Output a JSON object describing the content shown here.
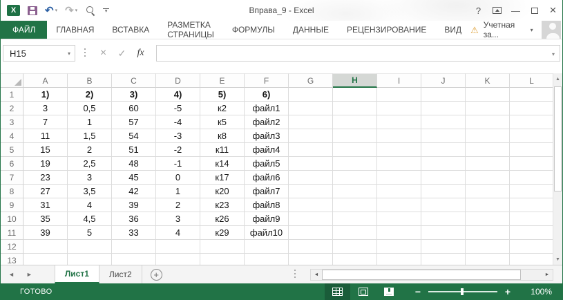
{
  "window": {
    "title": "Вправа_9 - Excel"
  },
  "icons": {
    "excel": "X",
    "undo": "↶",
    "redo": "↷",
    "caret": "▾",
    "help": "?",
    "minimize": "—",
    "close": "×",
    "warning": "⚠",
    "cancel": "×",
    "check": "✓",
    "fx": "fx",
    "up": "▲",
    "down": "▼",
    "left": "◄",
    "right": "►",
    "plus": "+"
  },
  "ribbon": {
    "tabs": [
      {
        "id": "file",
        "label": "ФАЙЛ",
        "active": true
      },
      {
        "id": "home",
        "label": "ГЛАВНАЯ",
        "active": false
      },
      {
        "id": "insert",
        "label": "ВСТАВКА",
        "active": false
      },
      {
        "id": "page-layout",
        "label": "РАЗМЕТКА СТРАНИЦЫ",
        "active": false
      },
      {
        "id": "formulas",
        "label": "ФОРМУЛЫ",
        "active": false
      },
      {
        "id": "data",
        "label": "ДАННЫЕ",
        "active": false
      },
      {
        "id": "review",
        "label": "РЕЦЕНЗИРОВАНИЕ",
        "active": false
      },
      {
        "id": "view",
        "label": "ВИД",
        "active": false
      }
    ],
    "account_label": "Учетная за..."
  },
  "formula_bar": {
    "name_box": "H15",
    "formula": ""
  },
  "grid": {
    "columns": [
      "A",
      "B",
      "C",
      "D",
      "E",
      "F",
      "G",
      "H",
      "I",
      "J",
      "K",
      "L"
    ],
    "selected_column": "H",
    "selected_cell": "H15",
    "rows": [
      {
        "n": 1,
        "bold": true,
        "cells": [
          "1)",
          "2)",
          "3)",
          "4)",
          "5)",
          "6)"
        ]
      },
      {
        "n": 2,
        "bold": false,
        "cells": [
          "3",
          "0,5",
          "60",
          "-5",
          "к2",
          "файл1"
        ]
      },
      {
        "n": 3,
        "bold": false,
        "cells": [
          "7",
          "1",
          "57",
          "-4",
          "к5",
          "файл2"
        ]
      },
      {
        "n": 4,
        "bold": false,
        "cells": [
          "11",
          "1,5",
          "54",
          "-3",
          "к8",
          "файл3"
        ]
      },
      {
        "n": 5,
        "bold": false,
        "cells": [
          "15",
          "2",
          "51",
          "-2",
          "к11",
          "файл4"
        ]
      },
      {
        "n": 6,
        "bold": false,
        "cells": [
          "19",
          "2,5",
          "48",
          "-1",
          "к14",
          "файл5"
        ]
      },
      {
        "n": 7,
        "bold": false,
        "cells": [
          "23",
          "3",
          "45",
          "0",
          "к17",
          "файл6"
        ]
      },
      {
        "n": 8,
        "bold": false,
        "cells": [
          "27",
          "3,5",
          "42",
          "1",
          "к20",
          "файл7"
        ]
      },
      {
        "n": 9,
        "bold": false,
        "cells": [
          "31",
          "4",
          "39",
          "2",
          "к23",
          "файл8"
        ]
      },
      {
        "n": 10,
        "bold": false,
        "cells": [
          "35",
          "4,5",
          "36",
          "3",
          "к26",
          "файл9"
        ]
      },
      {
        "n": 11,
        "bold": false,
        "cells": [
          "39",
          "5",
          "33",
          "4",
          "к29",
          "файл10"
        ]
      },
      {
        "n": 12,
        "bold": false,
        "cells": []
      },
      {
        "n": 13,
        "bold": false,
        "cells": []
      }
    ]
  },
  "sheet_bar": {
    "tabs": [
      {
        "id": "sheet1",
        "label": "Лист1",
        "active": true
      },
      {
        "id": "sheet2",
        "label": "Лист2",
        "active": false
      }
    ]
  },
  "status_bar": {
    "ready": "ГОТОВО",
    "zoom_out": "−",
    "zoom_in": "+",
    "zoom_level": "100%"
  },
  "colors": {
    "excel_green": "#217346",
    "active_view_button": "#1a5c39",
    "selected_header_bg": "#d5d8d5",
    "warning_amber": "#dfa33d",
    "save_icon_purple": "#8b5f8f",
    "undo_blue": "#2b5fa3"
  }
}
